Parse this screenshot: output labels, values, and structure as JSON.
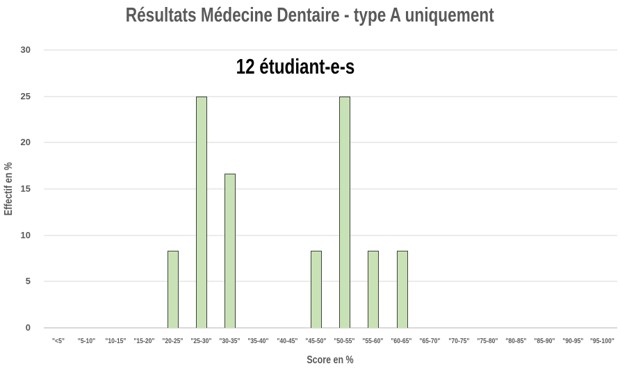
{
  "chart_data": {
    "type": "bar",
    "title": "Résultats Médecine Dentaire - type A uniquement",
    "annotation": "12 étudiant-e-s",
    "xlabel": "Score en %",
    "ylabel": "Effectif en %",
    "ylim": [
      0,
      30
    ],
    "yticks": [
      0,
      5,
      10,
      15,
      20,
      25,
      30
    ],
    "grid": true,
    "legend": false,
    "categories": [
      "\"<5\"",
      "\"5-10\"",
      "\"10-15\"",
      "\"15-20\"",
      "\"20-25\"",
      "\"25-30\"",
      "\"30-35\"",
      "\"35-40\"",
      "\"40-45\"",
      "\"45-50\"",
      "\"50-55\"",
      "\"55-60\"",
      "\"60-65\"",
      "\"65-70\"",
      "\"70-75\"",
      "\"75-80\"",
      "\"80-85\"",
      "\"85-90\"",
      "\"90-95\"",
      "\"95-100\""
    ],
    "values": [
      0,
      0,
      0,
      0,
      8.33,
      25,
      16.67,
      0,
      0,
      8.33,
      25,
      8.33,
      8.33,
      0,
      0,
      0,
      0,
      0,
      0,
      0
    ]
  },
  "colors": {
    "bar_fill": "#c9e2b5",
    "bar_border": "#404040",
    "gridline": "#ebebeb",
    "axis_line": "#d9d9d9",
    "text_gray": "#595959",
    "annotation_text": "#000000",
    "background": "#ffffff"
  }
}
